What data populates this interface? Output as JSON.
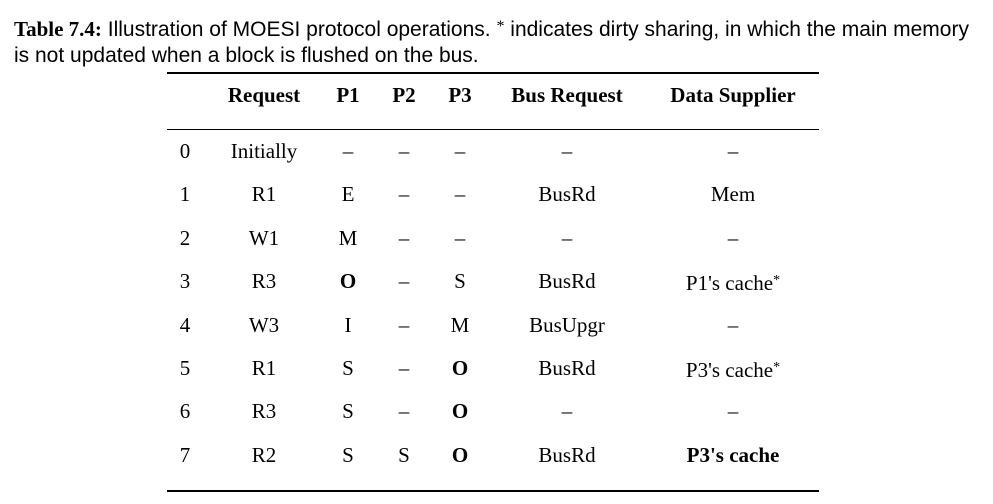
{
  "caption": {
    "label": "Table 7.4:",
    "text_a": " Illustration of MOESI protocol operations. ",
    "asterisk": "*",
    "text_b": " indicates dirty sharing, in which the main memory is not updated when a block is flushed on the bus."
  },
  "table": {
    "headers": [
      "",
      "Request",
      "P1",
      "P2",
      "P3",
      "Bus Request",
      "Data Supplier"
    ],
    "rows": [
      {
        "cells": [
          "0",
          "Initially",
          "–",
          "–",
          "–",
          "–",
          "–"
        ],
        "bold": []
      },
      {
        "cells": [
          "1",
          "R1",
          "E",
          "–",
          "–",
          "BusRd",
          "Mem"
        ],
        "bold": []
      },
      {
        "cells": [
          "2",
          "W1",
          "M",
          "–",
          "–",
          "–",
          "–"
        ],
        "bold": []
      },
      {
        "cells": [
          "3",
          "R3",
          "O",
          "–",
          "S",
          "BusRd",
          "P1's cache"
        ],
        "bold": [
          2
        ],
        "mark": "*"
      },
      {
        "cells": [
          "4",
          "W3",
          "I",
          "–",
          "M",
          "BusUpgr",
          "–"
        ],
        "bold": []
      },
      {
        "cells": [
          "5",
          "R1",
          "S",
          "–",
          "O",
          "BusRd",
          "P3's cache"
        ],
        "bold": [
          4
        ],
        "mark": "*"
      },
      {
        "cells": [
          "6",
          "R3",
          "S",
          "–",
          "O",
          "–",
          "–"
        ],
        "bold": [
          4
        ]
      },
      {
        "cells": [
          "7",
          "R2",
          "S",
          "S",
          "O",
          "BusRd",
          "P3's cache"
        ],
        "bold": [
          4,
          6
        ]
      }
    ]
  }
}
